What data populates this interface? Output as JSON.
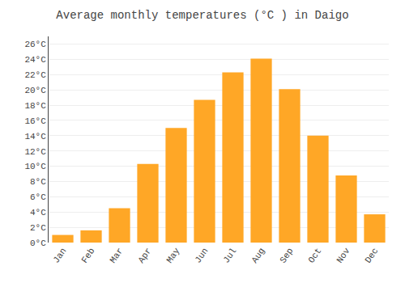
{
  "chart_data": {
    "type": "bar",
    "title": "Average monthly temperatures (°C ) in Daigo",
    "categories": [
      "Jan",
      "Feb",
      "Mar",
      "Apr",
      "May",
      "Jun",
      "Jul",
      "Aug",
      "Sep",
      "Oct",
      "Nov",
      "Dec"
    ],
    "values": [
      1.0,
      1.6,
      4.5,
      10.3,
      15.0,
      18.7,
      22.3,
      24.1,
      20.1,
      14.0,
      8.8,
      3.7
    ],
    "color": "#FFA726",
    "ylim": [
      0,
      27
    ],
    "yticks": [
      {
        "value": 0,
        "label": "0°C"
      },
      {
        "value": 2,
        "label": "2°C"
      },
      {
        "value": 4,
        "label": "4°C"
      },
      {
        "value": 6,
        "label": "6°C"
      },
      {
        "value": 8,
        "label": "8°C"
      },
      {
        "value": 10,
        "label": "10°C"
      },
      {
        "value": 12,
        "label": "12°C"
      },
      {
        "value": 14,
        "label": "14°C"
      },
      {
        "value": 16,
        "label": "16°C"
      },
      {
        "value": 18,
        "label": "18°C"
      },
      {
        "value": 20,
        "label": "20°C"
      },
      {
        "value": 22,
        "label": "22°C"
      },
      {
        "value": 24,
        "label": "24°C"
      },
      {
        "value": 26,
        "label": "26°C"
      }
    ],
    "grid": true
  }
}
